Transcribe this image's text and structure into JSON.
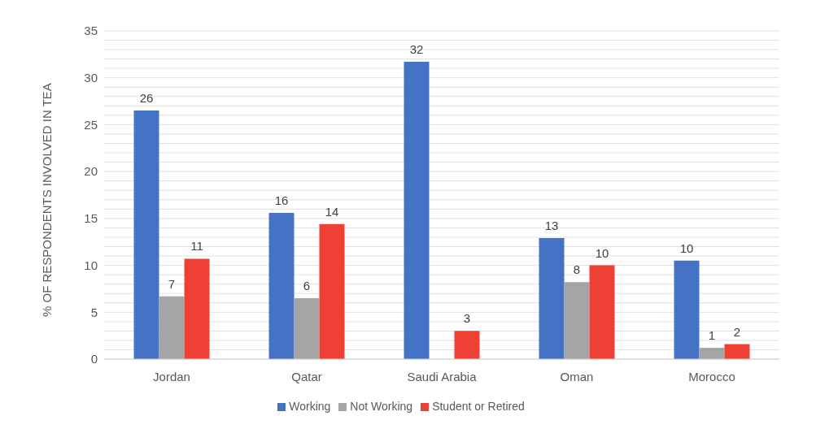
{
  "chart_data": {
    "type": "bar",
    "ylabel": "% OF RESPONDENTS INVOLVED IN TEA",
    "categories": [
      "Jordan",
      "Qatar",
      "Saudi Arabia",
      "Oman",
      "Morocco"
    ],
    "series": [
      {
        "name": "Working",
        "color": "#4472c4",
        "values": [
          26.5,
          15.6,
          31.7,
          12.9,
          10.5
        ],
        "value_labels": [
          "26",
          "16",
          "32",
          "13",
          "10"
        ]
      },
      {
        "name": "Not Working",
        "color": "#a5a5a5",
        "values": [
          6.7,
          6.5,
          null,
          8.2,
          1.2
        ],
        "value_labels": [
          "7",
          "6",
          null,
          "8",
          "1"
        ]
      },
      {
        "name": "Student or Retired",
        "color": "#ee4035",
        "values": [
          10.7,
          14.4,
          3.0,
          10.0,
          1.6
        ],
        "value_labels": [
          "11",
          "14",
          "3",
          "10",
          "2"
        ]
      }
    ],
    "ylim": [
      0,
      35
    ],
    "yticks": [
      0,
      {
        "value": 1,
        "label": null
      },
      {
        "value": 2,
        "label": null
      },
      {
        "value": 3,
        "label": null
      },
      {
        "value": 4,
        "label": null
      },
      5,
      {
        "value": 6,
        "label": null
      },
      {
        "value": 7,
        "label": null
      },
      {
        "value": 8,
        "label": null
      },
      {
        "value": 9,
        "label": null
      },
      10,
      {
        "value": 11,
        "label": null
      },
      {
        "value": 12,
        "label": null
      },
      {
        "value": 13,
        "label": null
      },
      {
        "value": 14,
        "label": null
      },
      15,
      {
        "value": 16,
        "label": null
      },
      {
        "value": 17,
        "label": null
      },
      {
        "value": 18,
        "label": null
      },
      {
        "value": 19,
        "label": null
      },
      20,
      {
        "value": 21,
        "label": null
      },
      {
        "value": 22,
        "label": null
      },
      {
        "value": 23,
        "label": null
      },
      {
        "value": 24,
        "label": null
      },
      25,
      {
        "value": 26,
        "label": null
      },
      {
        "value": 27,
        "label": null
      },
      {
        "value": 28,
        "label": null
      },
      {
        "value": 29,
        "label": null
      },
      30,
      {
        "value": 31,
        "label": null
      },
      {
        "value": 32,
        "label": null
      },
      {
        "value": 33,
        "label": null
      },
      {
        "value": 34,
        "label": null
      },
      35
    ],
    "grid": "y",
    "legend": "bottom"
  }
}
